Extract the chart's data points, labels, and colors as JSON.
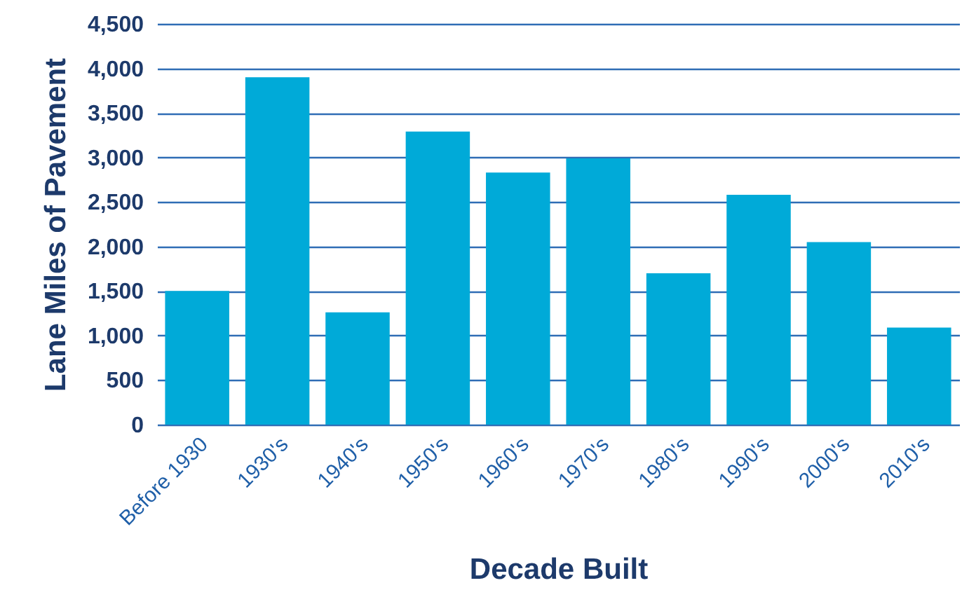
{
  "chart_data": {
    "type": "bar",
    "xlabel": "Decade Built",
    "ylabel": "Lane Miles of Pavement",
    "categories": [
      "Before 1930",
      "1930's",
      "1940's",
      "1950's",
      "1960's",
      "1970's",
      "1980's",
      "1990's",
      "2000's",
      "2010's"
    ],
    "values": [
      1500,
      3900,
      1260,
      3290,
      2830,
      2990,
      1700,
      2580,
      2050,
      1090
    ],
    "color": "#00aad8",
    "ylim": [
      0,
      4500
    ],
    "yticks": [
      {
        "value": 0,
        "label": "0"
      },
      {
        "value": 500,
        "label": "500"
      },
      {
        "value": 1000,
        "label": "1,000"
      },
      {
        "value": 1500,
        "label": "1,500"
      },
      {
        "value": 2000,
        "label": "2,000"
      },
      {
        "value": 2500,
        "label": "2,500"
      },
      {
        "value": 3000,
        "label": "3,000"
      },
      {
        "value": 3500,
        "label": "3,500"
      },
      {
        "value": 4000,
        "label": "4,000"
      },
      {
        "value": 4500,
        "label": "4,500"
      }
    ],
    "grid": "y"
  }
}
